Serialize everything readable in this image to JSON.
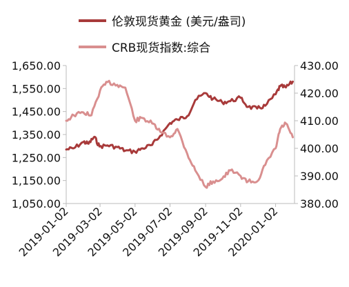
{
  "chart_data": {
    "type": "line",
    "title": "",
    "xlabel": "",
    "x_ticks": [
      "2019-01-02",
      "2019-03-02",
      "2019-05-02",
      "2019-07-02",
      "2019-09-02",
      "2019-11-02",
      "2020-01-02"
    ],
    "y_left": {
      "ticks": [
        "1,050.00",
        "1,150.00",
        "1,250.00",
        "1,350.00",
        "1,450.00",
        "1,550.00",
        "1,650.00"
      ],
      "min": 1050,
      "max": 1650
    },
    "y_right": {
      "ticks": [
        "380.00",
        "390.00",
        "400.00",
        "410.00",
        "420.00",
        "430.00"
      ],
      "min": 380,
      "max": 430
    },
    "legend": {
      "placement": "top-center",
      "entries": [
        "伦敦现货黄金 (美元/盎司)",
        "CRB现货指数:综合"
      ]
    },
    "grid": false,
    "series": [
      {
        "name": "伦敦现货黄金 (美元/盎司)",
        "axis": "left",
        "color": "#a83a3a",
        "points": [
          [
            "2019-01-02",
            1285
          ],
          [
            "2019-01-15",
            1290
          ],
          [
            "2019-02-01",
            1318
          ],
          [
            "2019-02-10",
            1310
          ],
          [
            "2019-02-20",
            1340
          ],
          [
            "2019-03-01",
            1298
          ],
          [
            "2019-03-15",
            1303
          ],
          [
            "2019-04-01",
            1295
          ],
          [
            "2019-04-15",
            1280
          ],
          [
            "2019-05-02",
            1275
          ],
          [
            "2019-05-15",
            1290
          ],
          [
            "2019-06-01",
            1305
          ],
          [
            "2019-06-15",
            1345
          ],
          [
            "2019-07-02",
            1400
          ],
          [
            "2019-07-15",
            1415
          ],
          [
            "2019-08-01",
            1430
          ],
          [
            "2019-08-15",
            1500
          ],
          [
            "2019-09-02",
            1530
          ],
          [
            "2019-09-15",
            1505
          ],
          [
            "2019-10-01",
            1490
          ],
          [
            "2019-10-15",
            1495
          ],
          [
            "2019-11-02",
            1510
          ],
          [
            "2019-11-15",
            1470
          ],
          [
            "2019-12-01",
            1463
          ],
          [
            "2019-12-15",
            1475
          ],
          [
            "2020-01-02",
            1525
          ],
          [
            "2020-01-10",
            1560
          ],
          [
            "2020-01-20",
            1555
          ],
          [
            "2020-02-01",
            1580
          ]
        ]
      },
      {
        "name": "CRB现货指数:综合",
        "axis": "right",
        "color": "#d98f8f",
        "points": [
          [
            "2019-01-02",
            410
          ],
          [
            "2019-01-15",
            412
          ],
          [
            "2019-02-01",
            413
          ],
          [
            "2019-02-15",
            412
          ],
          [
            "2019-03-02",
            421
          ],
          [
            "2019-03-15",
            424
          ],
          [
            "2019-04-01",
            423
          ],
          [
            "2019-04-15",
            422
          ],
          [
            "2019-05-02",
            410
          ],
          [
            "2019-05-15",
            411
          ],
          [
            "2019-06-01",
            409
          ],
          [
            "2019-06-15",
            406
          ],
          [
            "2019-07-02",
            404
          ],
          [
            "2019-07-15",
            407
          ],
          [
            "2019-08-01",
            398
          ],
          [
            "2019-08-15",
            392
          ],
          [
            "2019-09-02",
            386
          ],
          [
            "2019-09-15",
            388
          ],
          [
            "2019-10-01",
            389
          ],
          [
            "2019-10-15",
            392
          ],
          [
            "2019-11-02",
            390
          ],
          [
            "2019-11-15",
            388
          ],
          [
            "2019-12-01",
            388
          ],
          [
            "2019-12-15",
            394
          ],
          [
            "2020-01-02",
            400
          ],
          [
            "2020-01-10",
            407
          ],
          [
            "2020-01-20",
            409
          ],
          [
            "2020-02-01",
            404
          ]
        ]
      }
    ]
  }
}
